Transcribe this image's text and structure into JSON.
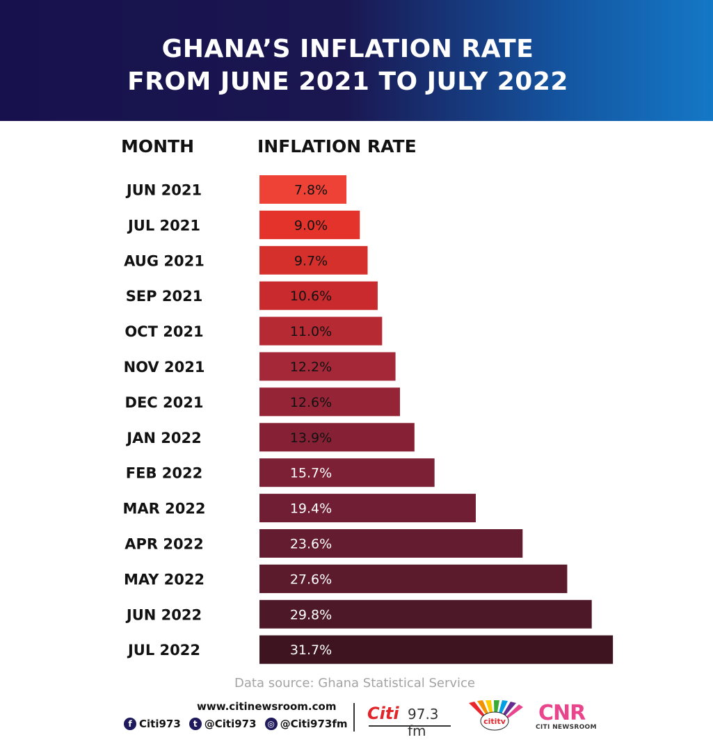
{
  "title_lines": [
    "GHANA’S INFLATION RATE",
    "FROM JUNE 2021 TO JULY 2022"
  ],
  "chart_data": {
    "type": "bar",
    "orientation": "horizontal",
    "title": "GHANA’S INFLATION RATE FROM JUNE 2021 TO JULY 2022",
    "column_headers": {
      "category": "MONTH",
      "value": "INFLATION RATE"
    },
    "categories": [
      "JUN 2021",
      "JUL 2021",
      "AUG 2021",
      "SEP 2021",
      "OCT 2021",
      "NOV 2021",
      "DEC 2021",
      "JAN 2022",
      "FEB 2022",
      "MAR 2022",
      "APR 2022",
      "MAY 2022",
      "JUN 2022",
      "JUL 2022"
    ],
    "values": [
      7.8,
      9.0,
      9.7,
      10.6,
      11.0,
      12.2,
      12.6,
      13.9,
      15.7,
      19.4,
      23.6,
      27.6,
      29.8,
      31.7
    ],
    "value_labels": [
      "7.8%",
      "9.0%",
      "9.7%",
      "10.6%",
      "11.0%",
      "12.2%",
      "12.6%",
      "13.9%",
      "15.7%",
      "19.4%",
      "23.6%",
      "27.6%",
      "29.8%",
      "31.7%"
    ],
    "bar_colors": [
      "#ee4236",
      "#e3332a",
      "#d5302c",
      "#c82a2e",
      "#b52a33",
      "#a42837",
      "#942436",
      "#862135",
      "#7b2035",
      "#701e33",
      "#641c30",
      "#5b1b2d",
      "#4d1827",
      "#3d1420"
    ],
    "value_label_colors": [
      "#111111",
      "#111111",
      "#111111",
      "#111111",
      "#111111",
      "#111111",
      "#111111",
      "#111111",
      "#ffffff",
      "#ffffff",
      "#ffffff",
      "#ffffff",
      "#ffffff",
      "#ffffff"
    ],
    "xlim": [
      0,
      32
    ],
    "grid": false,
    "legend": "none"
  },
  "footer": {
    "source": "Data source: Ghana Statistical Service",
    "website": "www.citinewsroom.com",
    "socials": [
      {
        "icon": "facebook-icon",
        "glyph": "f",
        "handle": "Citi973"
      },
      {
        "icon": "twitter-icon",
        "glyph": "t",
        "handle": "@Citi973"
      },
      {
        "icon": "instagram-icon",
        "glyph": "◎",
        "handle": "@Citi973fm"
      }
    ],
    "logos": {
      "citi_fm": {
        "word": "Citi",
        "frequency": "97.3 fm"
      },
      "citi_tv": {
        "word": "cititv"
      },
      "cnr": {
        "word": "CNR",
        "subtitle": "CITI NEWSROOM"
      }
    }
  },
  "colors": {
    "header_dark": "#17124d",
    "header_light": "#1478c6",
    "brand_red": "#e0262b",
    "brand_pink": "#e8458c"
  }
}
